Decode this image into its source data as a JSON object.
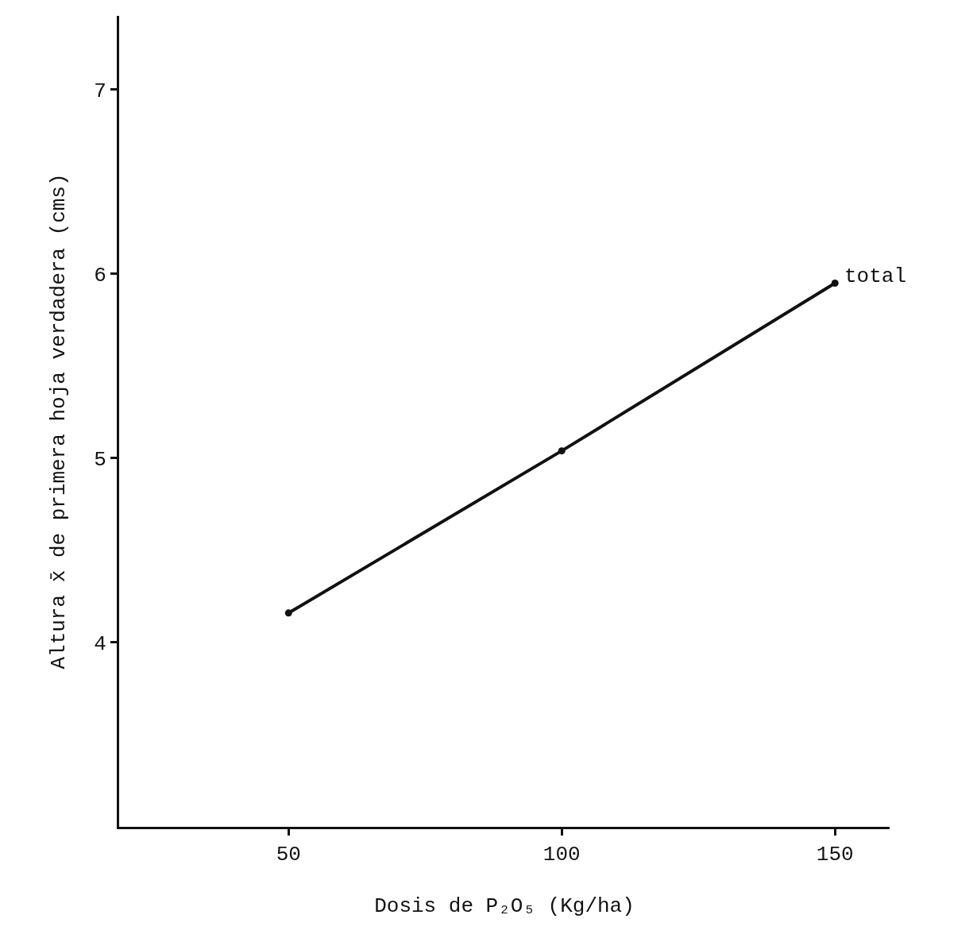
{
  "chart_data": {
    "type": "line",
    "xlabel": "Dosis de P₂O₅ (Kg/ha)",
    "ylabel": "Altura x̄ de primera hoja verdadera (cms)",
    "x": [
      50,
      100,
      150
    ],
    "series": [
      {
        "color": "#111111",
        "values": [
          4.16,
          5.04,
          5.95
        ]
      }
    ],
    "xlim": [
      19,
      160
    ],
    "xticks": [
      50,
      100,
      150
    ],
    "ylim": [
      3,
      7.4
    ],
    "yticks": [
      4,
      5,
      6,
      7
    ],
    "annotations": [
      {
        "text": "total",
        "x": 150,
        "y": 5.95
      }
    ],
    "marker": "circle",
    "line_style": "solid"
  }
}
